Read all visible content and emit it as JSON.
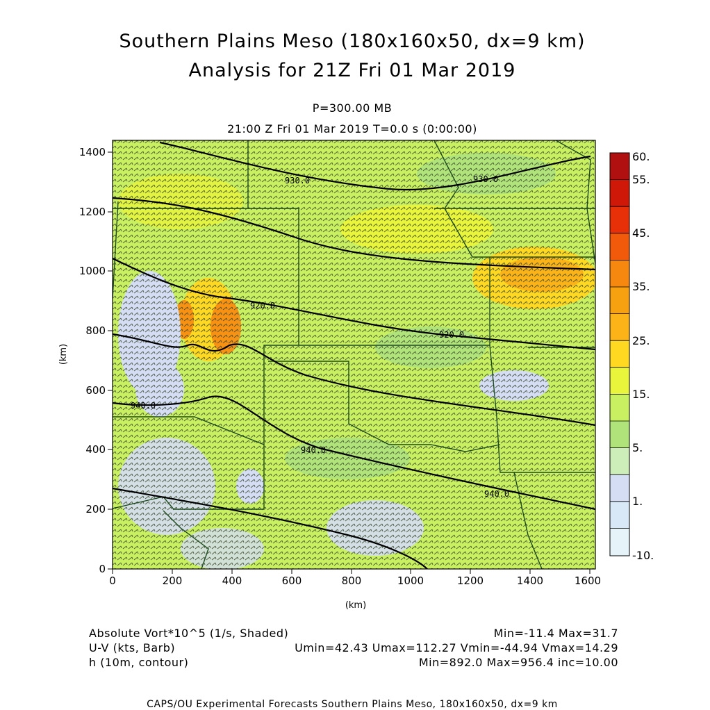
{
  "header": {
    "title_line1": "Southern Plains Meso (180x160x50, dx=9 km)",
    "title_line2": "Analysis for 21Z Fri 01 Mar 2019",
    "level": "P=300.00 MB",
    "time": "21:00 Z Fri 01 Mar 2019    T=0.0 s (0:00:00)"
  },
  "map": {
    "x_axis_label": "(km)",
    "y_axis_label": "(km)",
    "x_ticks": [
      "0",
      "200",
      "400",
      "600",
      "800",
      "1000",
      "1200",
      "1400",
      "1600"
    ],
    "y_ticks": [
      "0",
      "200",
      "400",
      "600",
      "800",
      "1000",
      "1200",
      "1400"
    ],
    "x_range_km": [
      0,
      1620
    ],
    "y_range_km": [
      0,
      1430
    ],
    "contour_labels": [
      "930.0",
      "930.0",
      "920.0",
      "920.0",
      "940.0",
      "940.0",
      "940.0"
    ]
  },
  "colorbar": {
    "labels": [
      "60.",
      "55.",
      "45.",
      "35.",
      "25.",
      "15.",
      "5.",
      "1.",
      "-10."
    ],
    "colors": [
      "#b01010",
      "#d01808",
      "#e83008",
      "#f05a0a",
      "#f7880f",
      "#fbb318",
      "#ffd821",
      "#e8f53a",
      "#c9f061",
      "#b0e47a",
      "#cdeeb9",
      "#d4ddf4",
      "#d8e8f7",
      "#e6f4fa"
    ]
  },
  "legend": {
    "field1_name": "Absolute Vort*10^5 (1/s, Shaded)",
    "field1_stats": "Min=-11.4 Max=31.7",
    "field2_name": "U-V (kts, Barb)",
    "field2_stats": "Umin=42.43 Umax=112.27 Vmin=-44.94 Vmax=14.29",
    "field3_name": "h (10m, contour)",
    "field3_stats": "Min=892.0 Max=956.4 inc=10.00"
  },
  "footer": "CAPS/OU Experimental Forecasts  Southern Plains Meso, 180x160x50, dx=9 km"
}
